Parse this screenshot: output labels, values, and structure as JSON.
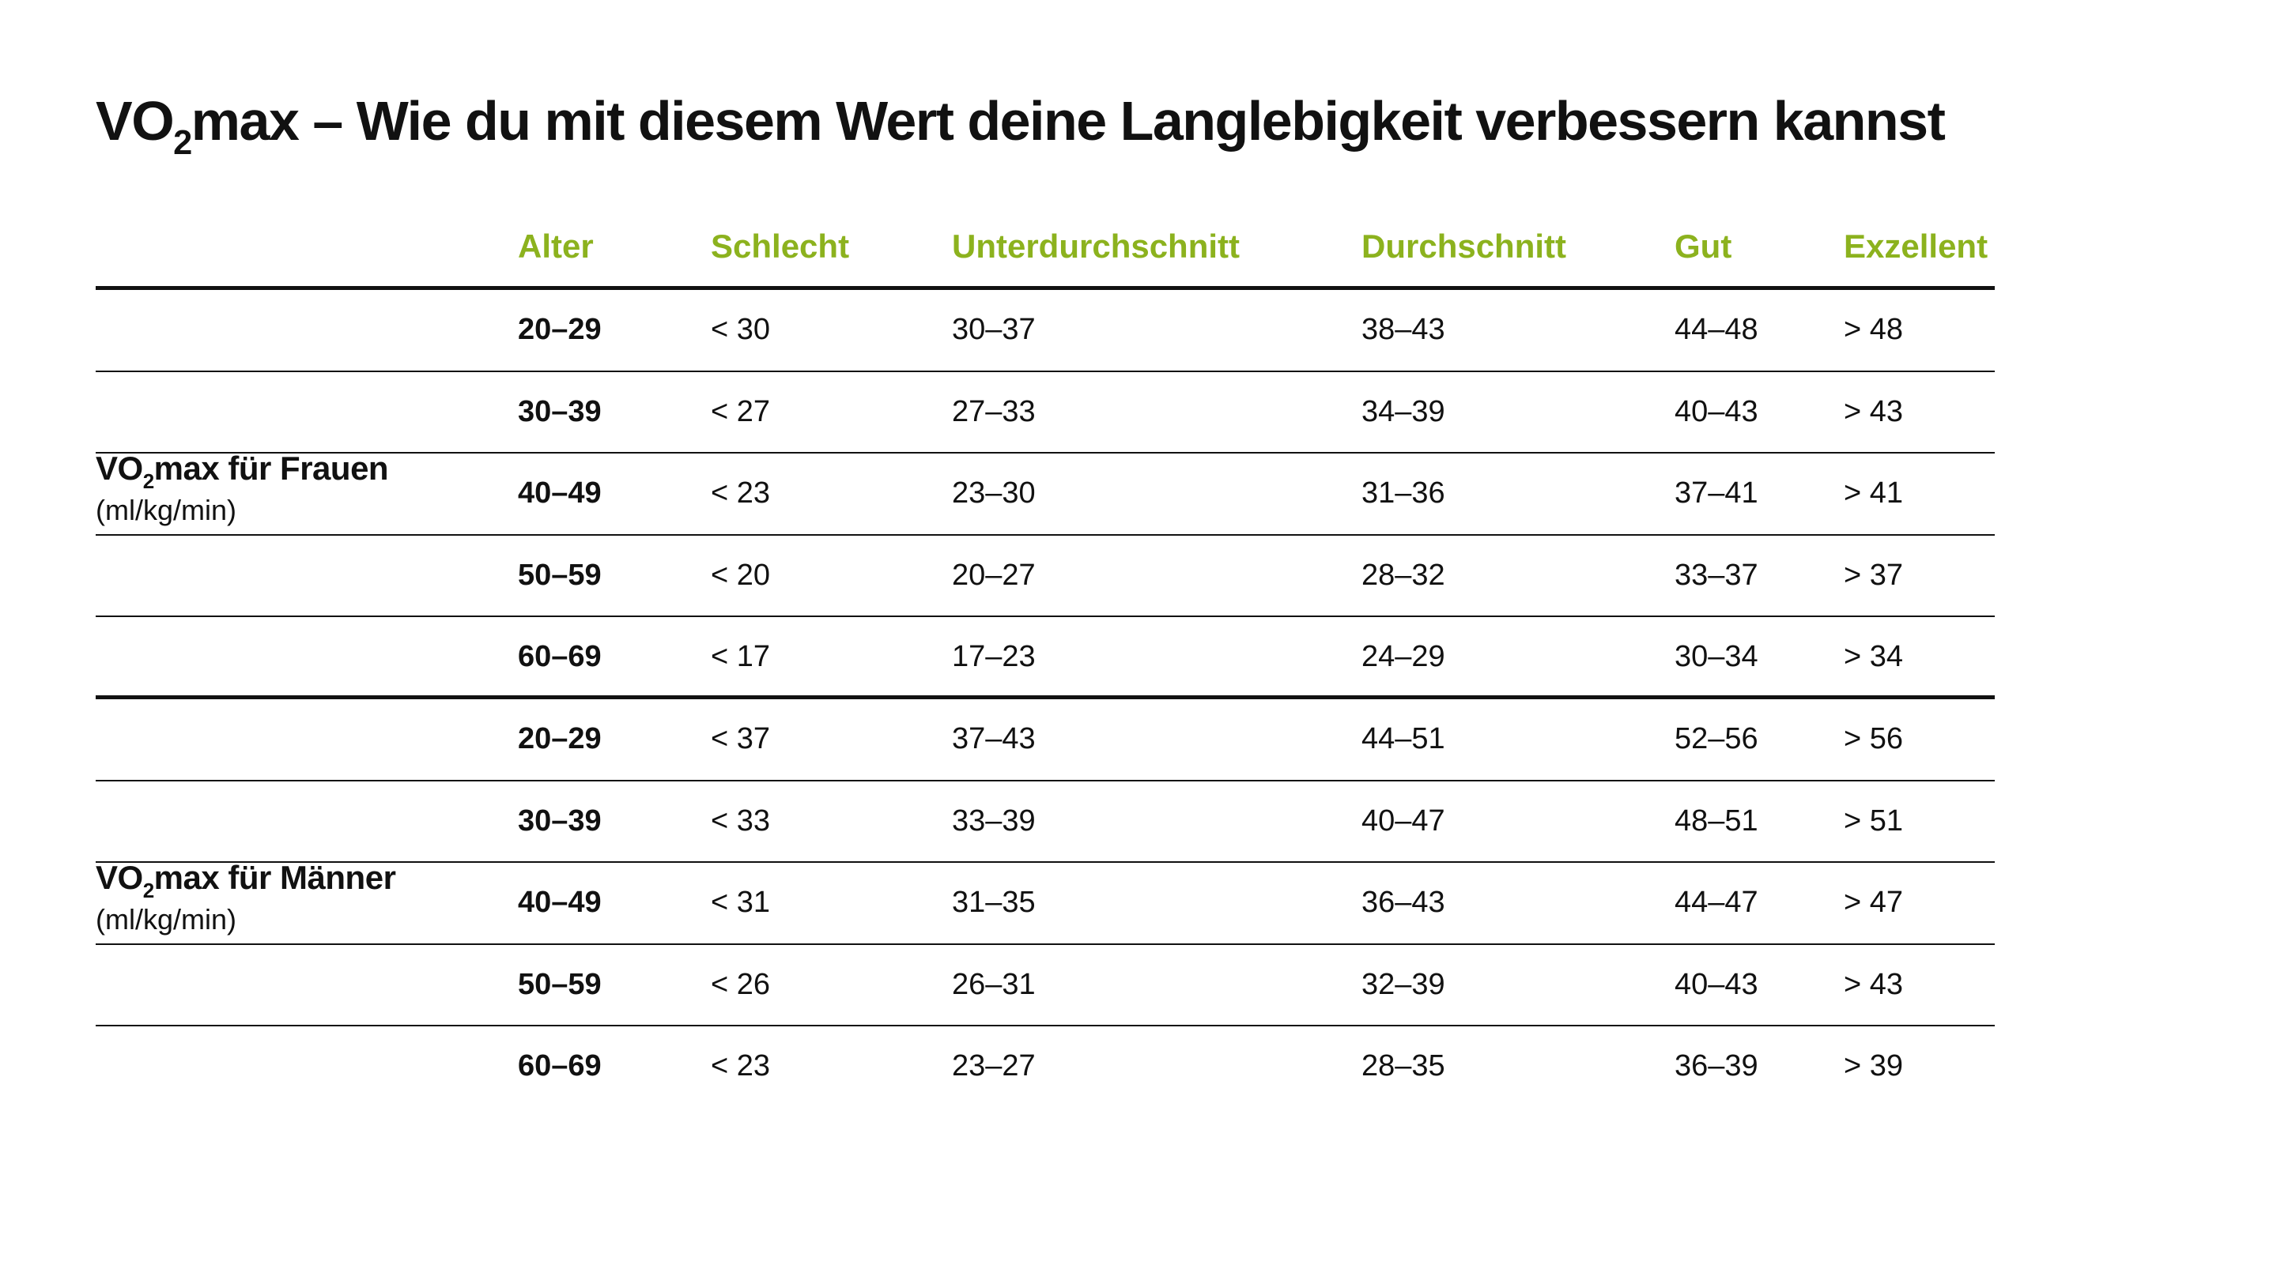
{
  "title": {
    "prefix": "VO",
    "subscript": "2",
    "rest": "max – Wie du mit diesem Wert deine Langlebigkeit verbessern kannst"
  },
  "header_color": "#8cb21e",
  "columns": [
    "Alter",
    "Schlecht",
    "Unterdurchschnitt",
    "Durchschnitt",
    "Gut",
    "Exzellent"
  ],
  "groups": [
    {
      "label_prefix": "VO",
      "label_subscript": "2",
      "label_rest": "max für Frauen",
      "unit": "(ml/kg/min)",
      "rows": [
        {
          "age": "20–29",
          "schlecht": "< 30",
          "unter": "30–37",
          "durch": "38–43",
          "gut": "44–48",
          "exz": "> 48"
        },
        {
          "age": "30–39",
          "schlecht": "< 27",
          "unter": "27–33",
          "durch": "34–39",
          "gut": "40–43",
          "exz": "> 43"
        },
        {
          "age": "40–49",
          "schlecht": "< 23",
          "unter": "23–30",
          "durch": "31–36",
          "gut": "37–41",
          "exz": "> 41"
        },
        {
          "age": "50–59",
          "schlecht": "< 20",
          "unter": "20–27",
          "durch": "28–32",
          "gut": "33–37",
          "exz": "> 37"
        },
        {
          "age": "60–69",
          "schlecht": "< 17",
          "unter": "17–23",
          "durch": "24–29",
          "gut": "30–34",
          "exz": "> 34"
        }
      ]
    },
    {
      "label_prefix": "VO",
      "label_subscript": "2",
      "label_rest": "max für Männer",
      "unit": "(ml/kg/min)",
      "rows": [
        {
          "age": "20–29",
          "schlecht": "< 37",
          "unter": "37–43",
          "durch": "44–51",
          "gut": "52–56",
          "exz": "> 56"
        },
        {
          "age": "30–39",
          "schlecht": "< 33",
          "unter": "33–39",
          "durch": "40–47",
          "gut": "48–51",
          "exz": "> 51"
        },
        {
          "age": "40–49",
          "schlecht": "< 31",
          "unter": "31–35",
          "durch": "36–43",
          "gut": "44–47",
          "exz": "> 47"
        },
        {
          "age": "50–59",
          "schlecht": "< 26",
          "unter": "26–31",
          "durch": "32–39",
          "gut": "40–43",
          "exz": "> 43"
        },
        {
          "age": "60–69",
          "schlecht": "< 23",
          "unter": "23–27",
          "durch": "28–35",
          "gut": "36–39",
          "exz": "> 39"
        }
      ]
    }
  ]
}
